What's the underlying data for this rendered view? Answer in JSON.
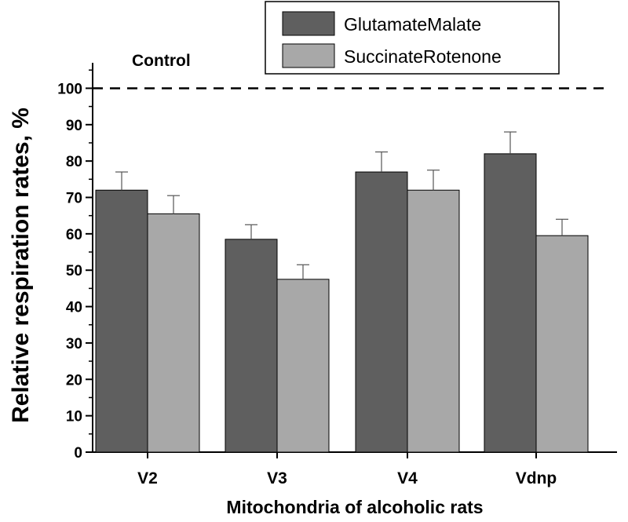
{
  "chart_data": {
    "type": "bar",
    "title": "",
    "xlabel": "Mitochondria of alcoholic rats",
    "ylabel": "Relative respiration rates, %",
    "categories": [
      "V2",
      "V3",
      "V4",
      "Vdnp"
    ],
    "series": [
      {
        "name": "GlutamateMalate",
        "values": [
          72,
          58.5,
          77,
          82
        ],
        "errors": [
          5,
          4,
          5.5,
          6
        ],
        "color": "#5f5f5f"
      },
      {
        "name": "SuccinateRotenone",
        "values": [
          65.5,
          47.5,
          72,
          59.5
        ],
        "errors": [
          5,
          4,
          5.5,
          4.5
        ],
        "color": "#a8a8a8"
      }
    ],
    "ylim": [
      0,
      107
    ],
    "yticks": [
      0,
      10,
      20,
      30,
      40,
      50,
      60,
      70,
      80,
      90,
      100
    ],
    "reference_line": {
      "value": 100,
      "label": "Control",
      "style": "dashed"
    },
    "legend_position": "top-right",
    "grid": false
  }
}
